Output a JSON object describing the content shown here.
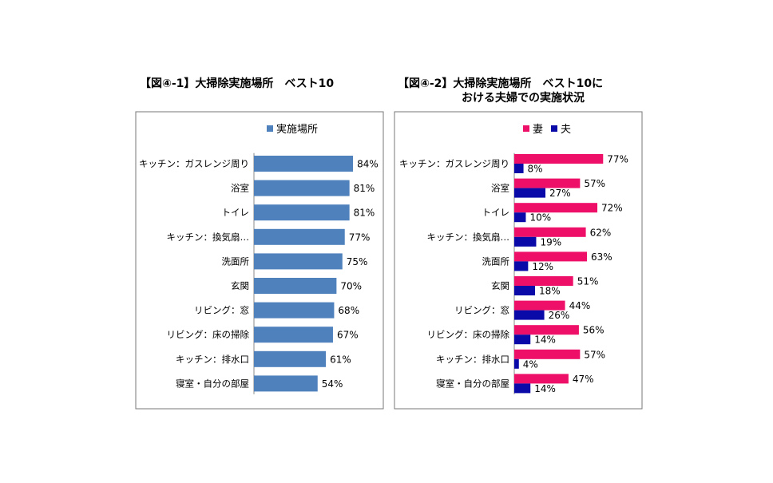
{
  "chart_data": [
    {
      "type": "bar",
      "orientation": "horizontal",
      "title": "【図④-1】大掃除実施場所　ベスト10",
      "categories": [
        "キッチン：ガスレンジ周り",
        "浴室",
        "トイレ",
        "キッチン：換気扇…",
        "洗面所",
        "玄関",
        "リビング：窓",
        "リビング：床の掃除",
        "キッチン：排水口",
        "寝室・自分の部屋"
      ],
      "series": [
        {
          "name": "実施場所",
          "color": "#4f81bd",
          "values": [
            84,
            81,
            81,
            77,
            75,
            70,
            68,
            67,
            61,
            54
          ]
        }
      ],
      "value_suffix": "%",
      "xlim": [
        0,
        100
      ],
      "legend": "top",
      "grid": false
    },
    {
      "type": "bar",
      "orientation": "horizontal",
      "title": "【図④-2】大掃除実施場所　ベスト10に",
      "title_line2": "おける夫婦での実施状況",
      "categories": [
        "キッチン：ガスレンジ周り",
        "浴室",
        "トイレ",
        "キッチン：換気扇…",
        "洗面所",
        "玄関",
        "リビング：窓",
        "リビング：床の掃除",
        "キッチン：排水口",
        "寝室・自分の部屋"
      ],
      "series": [
        {
          "name": "妻",
          "color": "#ee0f68",
          "values": [
            77,
            57,
            72,
            62,
            63,
            51,
            44,
            56,
            57,
            47
          ]
        },
        {
          "name": "夫",
          "color": "#0a0aa8",
          "values": [
            8,
            27,
            10,
            19,
            12,
            18,
            26,
            14,
            4,
            14
          ]
        }
      ],
      "value_suffix": "%",
      "xlim": [
        0,
        100
      ],
      "legend": "top",
      "grid": false
    }
  ]
}
